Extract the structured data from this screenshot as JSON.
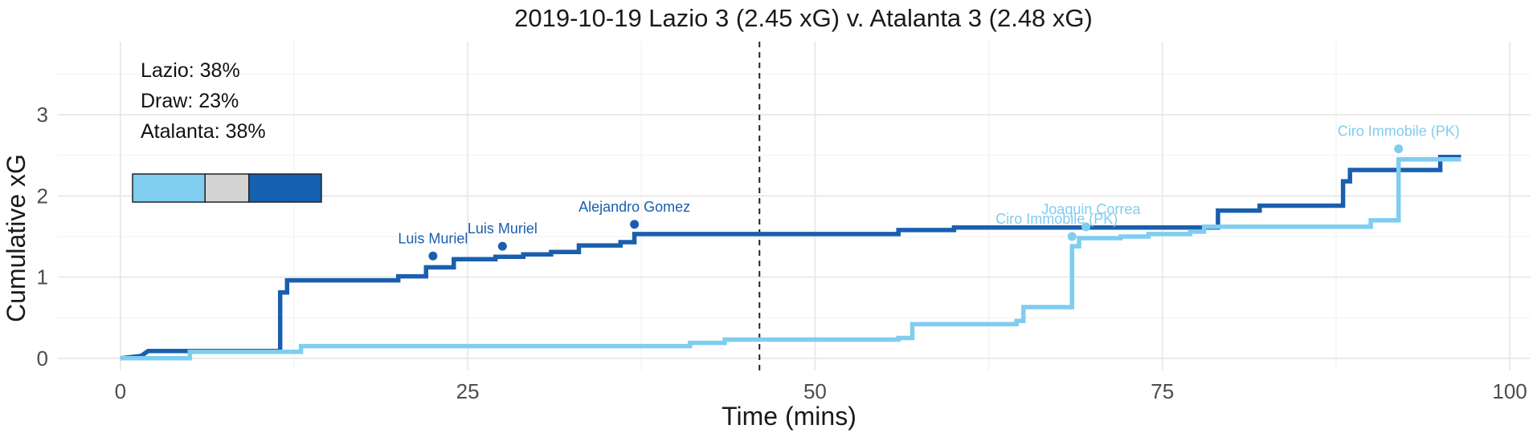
{
  "chart_data": {
    "type": "line",
    "title": "2019-10-19 Lazio 3 (2.45 xG) v. Atalanta 3 (2.48 xG)",
    "xlabel": "Time (mins)",
    "ylabel": "Cumulative xG",
    "xlim": [
      -4.5,
      101.5
    ],
    "ylim": [
      -0.15,
      3.9
    ],
    "x_ticks": [
      0,
      25,
      50,
      75,
      100
    ],
    "x_minor": [
      12.5,
      37.5,
      62.5,
      87.5
    ],
    "y_ticks": [
      0,
      1,
      2,
      3
    ],
    "y_minor": [
      0.5,
      1.5,
      2.5,
      3.5
    ],
    "halftime": 46,
    "grid": true,
    "probabilities": {
      "lines": [
        "Lazio: 38%",
        "Draw: 23%",
        "Atalanta: 38%"
      ],
      "bar": [
        {
          "label": "Lazio",
          "value": 38,
          "color": "#7fcdef"
        },
        {
          "label": "Draw",
          "value": 23,
          "color": "#d3d3d3"
        },
        {
          "label": "Atalanta",
          "value": 38,
          "color": "#1660b0"
        }
      ]
    },
    "series": [
      {
        "color": "#1a5fae",
        "steps": [
          [
            0,
            0
          ],
          [
            1.5,
            0.03
          ],
          [
            2,
            0.09
          ],
          [
            5,
            0.09
          ],
          [
            11.5,
            0.09
          ],
          [
            11.5,
            0.81
          ],
          [
            12,
            0.81
          ],
          [
            12,
            0.96
          ],
          [
            20,
            0.96
          ],
          [
            20,
            1.01
          ],
          [
            22,
            1.01
          ],
          [
            22,
            1.12
          ],
          [
            24,
            1.12
          ],
          [
            24,
            1.22
          ],
          [
            27,
            1.22
          ],
          [
            27,
            1.25
          ],
          [
            29,
            1.25
          ],
          [
            29,
            1.28
          ],
          [
            31,
            1.28
          ],
          [
            31,
            1.31
          ],
          [
            33,
            1.31
          ],
          [
            33,
            1.39
          ],
          [
            36,
            1.39
          ],
          [
            36,
            1.43
          ],
          [
            37,
            1.43
          ],
          [
            37,
            1.53
          ],
          [
            56,
            1.53
          ],
          [
            56,
            1.58
          ],
          [
            60,
            1.58
          ],
          [
            60,
            1.61
          ],
          [
            79,
            1.61
          ],
          [
            79,
            1.82
          ],
          [
            82,
            1.82
          ],
          [
            82,
            1.88
          ],
          [
            88,
            1.88
          ],
          [
            88,
            2.18
          ],
          [
            88.5,
            2.18
          ],
          [
            88.5,
            2.32
          ],
          [
            95,
            2.32
          ],
          [
            95,
            2.48
          ],
          [
            96.5,
            2.48
          ]
        ]
      },
      {
        "color": "#7fcdef",
        "steps": [
          [
            0,
            0
          ],
          [
            5,
            0
          ],
          [
            5,
            0.08
          ],
          [
            13,
            0.08
          ],
          [
            13,
            0.15
          ],
          [
            41,
            0.15
          ],
          [
            41,
            0.19
          ],
          [
            43.5,
            0.19
          ],
          [
            43.5,
            0.23
          ],
          [
            56,
            0.23
          ],
          [
            56,
            0.25
          ],
          [
            57,
            0.25
          ],
          [
            57,
            0.42
          ],
          [
            64.5,
            0.42
          ],
          [
            64.5,
            0.46
          ],
          [
            65,
            0.46
          ],
          [
            65,
            0.63
          ],
          [
            68.5,
            0.63
          ],
          [
            68.5,
            1.38
          ],
          [
            69,
            1.38
          ],
          [
            69,
            1.48
          ],
          [
            72,
            1.48
          ],
          [
            72,
            1.5
          ],
          [
            74,
            1.5
          ],
          [
            74,
            1.53
          ],
          [
            77,
            1.53
          ],
          [
            77,
            1.56
          ],
          [
            78,
            1.56
          ],
          [
            78,
            1.62
          ],
          [
            90,
            1.62
          ],
          [
            90,
            1.7
          ],
          [
            92,
            1.7
          ],
          [
            92,
            2.45
          ],
          [
            96.5,
            2.45
          ]
        ]
      }
    ],
    "goals": [
      {
        "label": "Luis Muriel",
        "x": 22.5,
        "y": 1.26,
        "color": "#1a5fae",
        "anchor": "middle"
      },
      {
        "label": "Luis Muriel",
        "x": 27.5,
        "y": 1.38,
        "color": "#1a5fae",
        "anchor": "middle"
      },
      {
        "label": "Alejandro Gomez",
        "x": 37,
        "y": 1.65,
        "color": "#1a5fae",
        "anchor": "middle"
      },
      {
        "label": "Ciro Immobile (PK)",
        "x": 68.5,
        "y": 1.5,
        "color": "#7fcdef",
        "anchor": "start",
        "label_dx": -5.5
      },
      {
        "label": "Joaquin Correa",
        "x": 69.5,
        "y": 1.62,
        "color": "#7fcdef",
        "anchor": "start",
        "label_dx": -3.2
      },
      {
        "label": "Ciro Immobile (PK)",
        "x": 92,
        "y": 2.58,
        "color": "#7fcdef",
        "anchor": "middle"
      }
    ]
  }
}
